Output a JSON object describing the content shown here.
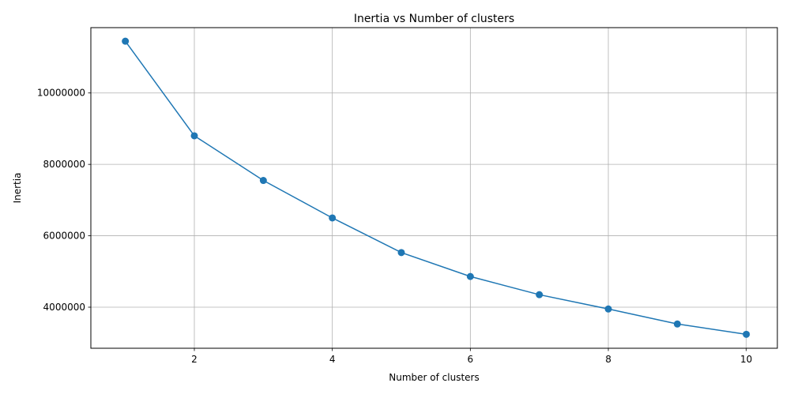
{
  "chart_data": {
    "type": "line",
    "title": "Inertia vs Number of clusters",
    "xlabel": "Number of clusters",
    "ylabel": "Inertia",
    "x": [
      1,
      2,
      3,
      4,
      5,
      6,
      7,
      8,
      9,
      10
    ],
    "series": [
      {
        "values": [
          11450000,
          8800000,
          7550000,
          6500000,
          5530000,
          4860000,
          4350000,
          3950000,
          3530000,
          3240000
        ],
        "color": "#1f77b4",
        "marker": "circle"
      }
    ],
    "xlim": [
      0.5,
      10.45
    ],
    "ylim": [
      2850000,
      11830000
    ],
    "xticks": [
      2,
      4,
      6,
      8,
      10
    ],
    "yticks": [
      4000000,
      6000000,
      8000000,
      10000000
    ],
    "xtick_labels": [
      "2",
      "4",
      "6",
      "8",
      "10"
    ],
    "ytick_labels": [
      "4000000",
      "6000000",
      "8000000",
      "10000000"
    ],
    "grid": true,
    "grid_color": "#b0b0b0"
  }
}
